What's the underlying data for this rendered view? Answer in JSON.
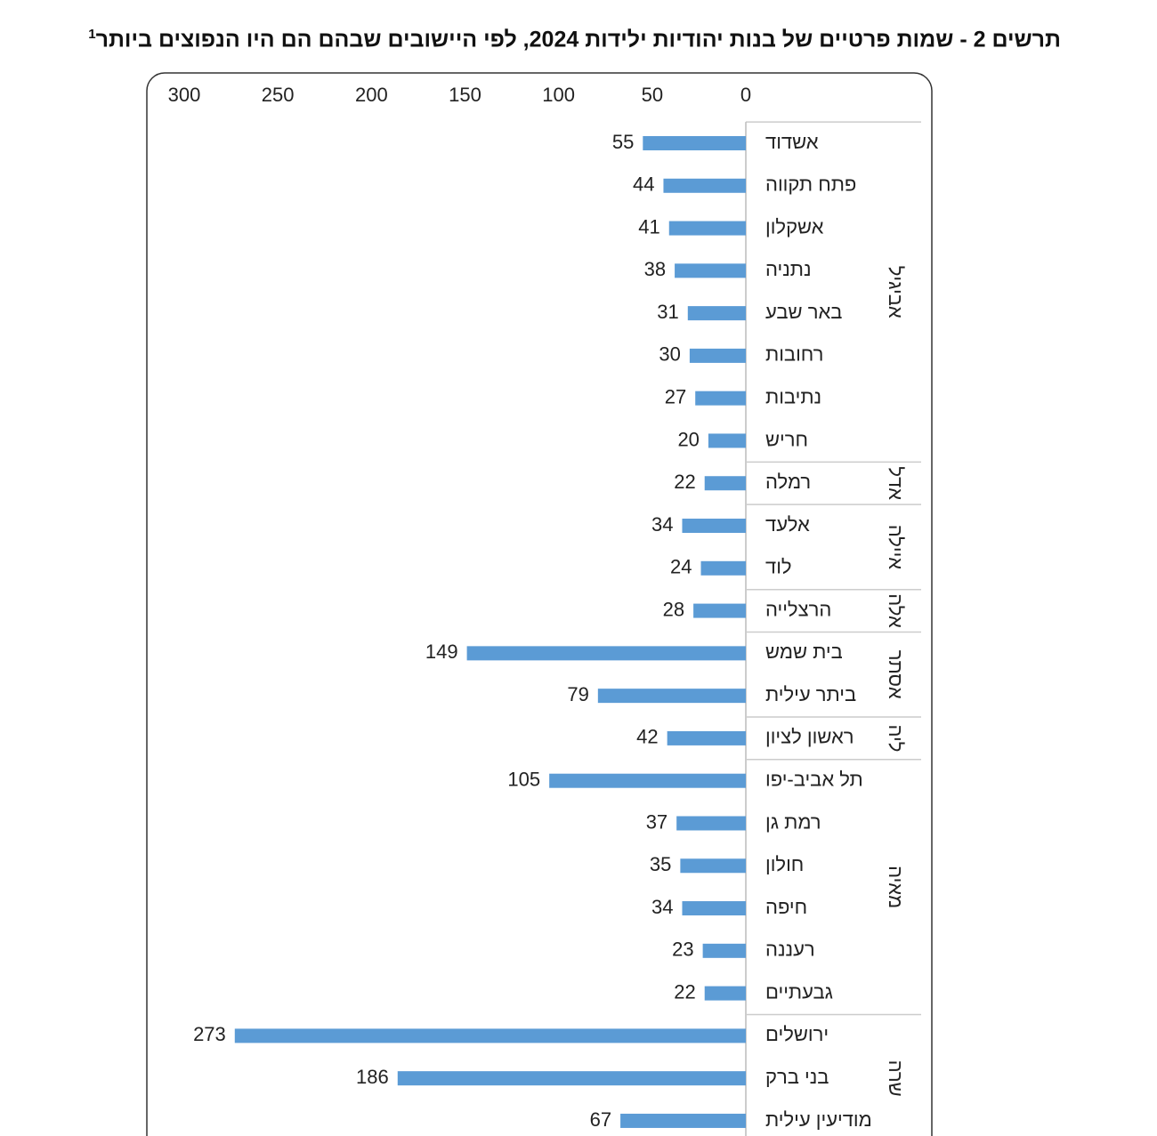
{
  "chart_data": {
    "type": "bar",
    "title": "תרשים 2 - שמות פרטיים של בנות יהודיות ילידות 2024, לפי היישובים שבהם הם היו הנפוצים ביותר",
    "title_note": "1",
    "color": "#5b9bd5",
    "x_reversed": true,
    "xlim": [
      0,
      300
    ],
    "xticks": [
      0,
      50,
      100,
      150,
      200,
      250,
      300
    ],
    "groups": [
      {
        "name": "אביגיל",
        "categories": [
          "אשדוד",
          "פתח תקווה",
          "אשקלון",
          "נתניה",
          "באר שבע",
          "רחובות",
          "נתיבות",
          "חריש"
        ],
        "values": [
          55,
          44,
          41,
          38,
          31,
          30,
          27,
          20
        ]
      },
      {
        "name": "אדל",
        "categories": [
          "רמלה"
        ],
        "values": [
          22
        ]
      },
      {
        "name": "איילה",
        "categories": [
          "אלעד",
          "לוד"
        ],
        "values": [
          34,
          24
        ]
      },
      {
        "name": "אלה",
        "categories": [
          "הרצלייה"
        ],
        "values": [
          28
        ]
      },
      {
        "name": "אסתר",
        "categories": [
          "בית שמש",
          "ביתר עילית"
        ],
        "values": [
          149,
          79
        ]
      },
      {
        "name": "ליה",
        "categories": [
          "ראשון לציון"
        ],
        "values": [
          42
        ]
      },
      {
        "name": "מאיה",
        "categories": [
          "תל אביב-יפו",
          "רמת גן",
          "חולון",
          "חיפה",
          "רעננה",
          "גבעתיים"
        ],
        "values": [
          105,
          37,
          35,
          34,
          23,
          22
        ]
      },
      {
        "name": "שרה",
        "categories": [
          "ירושלים",
          "בני ברק",
          "מודיעין עילית"
        ],
        "values": [
          273,
          186,
          67
        ]
      }
    ]
  }
}
